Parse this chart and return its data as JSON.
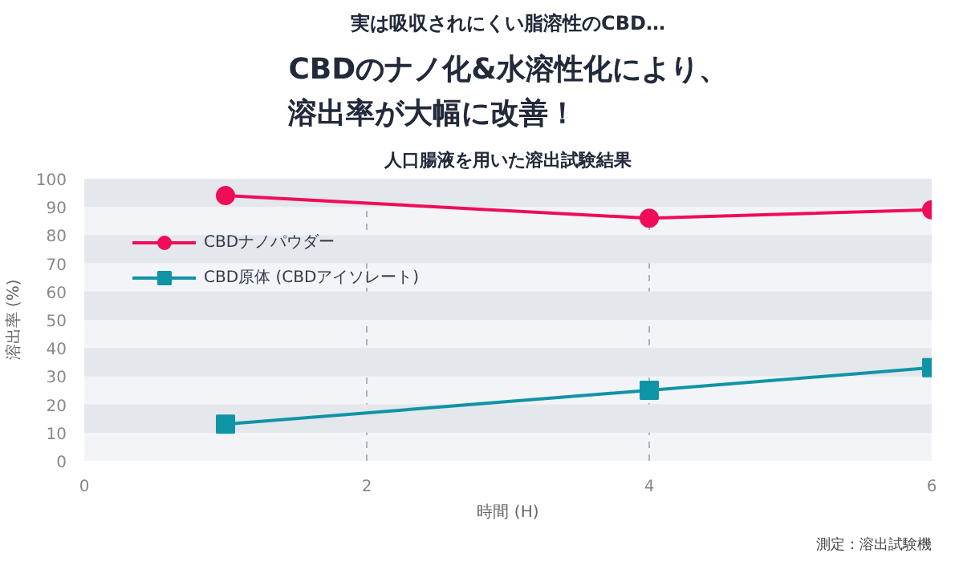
{
  "chart_data": {
    "type": "line",
    "subtitle": "実は吸収されにくい脂溶性のCBD…",
    "title": "CBDのナノ化&水溶性化により、溶出率が大幅に改善！",
    "annotations": [
      "人口腸液を用いた溶出試験結果",
      "測定：溶出試験機"
    ],
    "xlabel": "時間 (H)",
    "ylabel": "溶出率 (%)",
    "x": [
      1,
      4,
      6
    ],
    "series": [
      {
        "name": "CBDナノパウダー",
        "color": "#ef0d57",
        "values": [
          94,
          86,
          89
        ],
        "marker": "circle"
      },
      {
        "name": "CBD原体 (CBDアイソレート)",
        "color": "#0f94a6",
        "values": [
          13,
          25,
          33
        ],
        "marker": "square"
      }
    ],
    "xlim": [
      0,
      6
    ],
    "xticks": [
      0,
      2,
      4,
      6
    ],
    "ylim": [
      0,
      100
    ],
    "yticks": [
      0,
      10,
      20,
      30,
      40,
      50,
      60,
      70,
      80,
      90,
      100
    ],
    "grid": true,
    "legend": "top left",
    "line_style": "solid"
  }
}
